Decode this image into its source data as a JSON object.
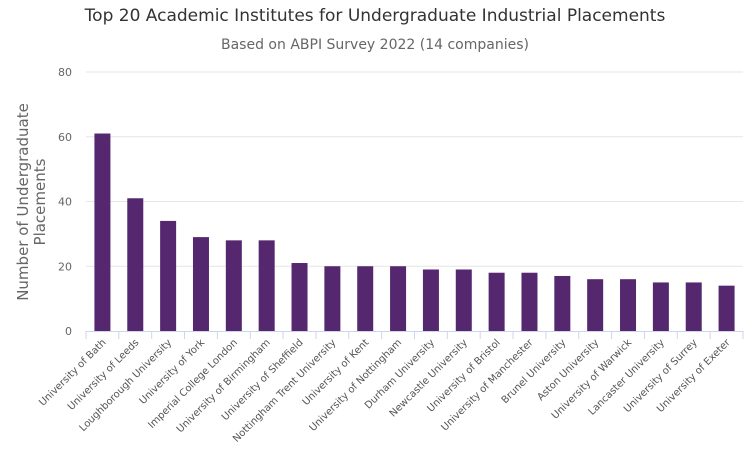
{
  "chart_data": {
    "type": "bar",
    "title": "Top 20 Academic Institutes for Undergraduate Industrial Placements",
    "subtitle": "Based on ABPI Survey 2022 (14 companies)",
    "xlabel": "",
    "ylabel": "Number of Undergraduate Placements",
    "ylabel_lines": [
      "Number of Undergraduate",
      "Placements"
    ],
    "ylim": [
      0,
      80
    ],
    "yticks": [
      0,
      20,
      40,
      60,
      80
    ],
    "grid": true,
    "legend": "none",
    "bar_color": "#54276f",
    "categories": [
      "University of Bath",
      "University of Leeds",
      "Loughborough University",
      "University of York",
      "Imperial College London",
      "University of Birmingham",
      "University of Sheffield",
      "Nottingham Trent University",
      "University of Kent",
      "University of Nottingham",
      "Durham University",
      "Newcastle University",
      "University of Bristol",
      "University of Manchester",
      "Brunel University",
      "Aston University",
      "University of Warwick",
      "Lancaster University",
      "University of Surrey",
      "University of Exeter"
    ],
    "values": [
      61,
      41,
      34,
      29,
      28,
      28,
      21,
      20,
      20,
      20,
      19,
      19,
      18,
      18,
      17,
      16,
      16,
      15,
      15,
      14
    ]
  }
}
